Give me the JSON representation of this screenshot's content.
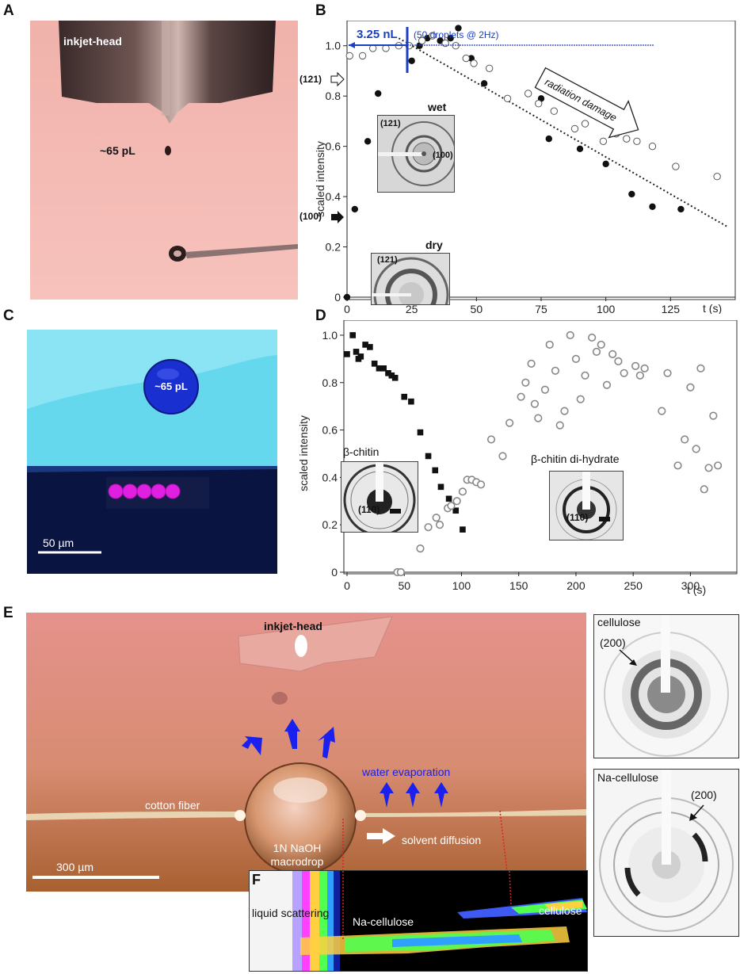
{
  "panels": {
    "a": {
      "letter": "A",
      "inkjet_label": "inkjet-head",
      "drop_label": "~65 pL"
    },
    "b": {
      "letter": "B"
    },
    "c": {
      "letter": "C",
      "drop_label": "~65 pL",
      "scalebar": "50 µm"
    },
    "d": {
      "letter": "D"
    },
    "e": {
      "letter": "E",
      "inkjet_label": "inkjet-head",
      "fiber_label": "cotton fiber",
      "drop_line1": "1N NaOH",
      "drop_line2": "macrodrop",
      "evap_label": "water evaporation",
      "diff_label": "solvent diffusion",
      "scalebar": "300 µm",
      "cellulose_title": "cellulose",
      "cellulose_reflection": "(200)",
      "na_title": "Na-cellulose",
      "na_reflection": "(200)"
    },
    "f": {
      "letter": "F",
      "liquid": "liquid scattering",
      "na": "Na-cellulose",
      "cell": "cellulose"
    }
  },
  "colors": {
    "accent_blue": "#1a3fc0",
    "magenta": "#e020e0",
    "drop_blue": "#1a2fd0",
    "cyan": "#66d8ee",
    "navy": "#0a1440",
    "pink_bg": "#f4b3ae"
  },
  "chart_data": [
    {
      "type": "scatter",
      "panel": "B",
      "ylabel": "scaled intensity",
      "xunit": "t (s)",
      "xlim": [
        0,
        150
      ],
      "ylim": [
        0,
        1.1
      ],
      "xticks": [
        0,
        25,
        50,
        75,
        100,
        125
      ],
      "yticks": [
        0,
        0.2,
        0.4,
        0.6,
        0.8,
        1.0
      ],
      "xtick_labels": [
        "0",
        "25",
        "50",
        "75",
        "100",
        "125"
      ],
      "ytick_labels": [
        "0",
        "0.2",
        "0.4",
        "0.6",
        "0.8",
        "1.0"
      ],
      "volume_label": "3.25 nL",
      "droplet_label": "(50 droplets @ 2Hz)",
      "arrow_label": "radiation damage",
      "label_121": "(121)",
      "label_100": "(100)",
      "inset_wet": {
        "title": "wet",
        "l121": "(121)",
        "l100": "(100)"
      },
      "inset_dry": {
        "title": "dry",
        "l121": "(121)"
      },
      "series": [
        {
          "marker": "filled",
          "x": [
            0,
            3,
            8,
            12,
            25,
            28,
            31,
            36,
            40,
            43,
            48,
            53,
            62,
            75,
            78,
            90,
            100,
            110,
            118,
            129
          ],
          "y": [
            0.0,
            0.35,
            0.62,
            0.81,
            0.94,
            1.0,
            1.03,
            1.02,
            1.03,
            1.07,
            0.95,
            0.85,
            0.79,
            0.79,
            0.63,
            0.59,
            0.53,
            0.41,
            0.36,
            0.35
          ]
        },
        {
          "marker": "open",
          "x": [
            1,
            6,
            10,
            15,
            20,
            24,
            29,
            33,
            38,
            42,
            46,
            49,
            55,
            62,
            70,
            74,
            80,
            88,
            92,
            99,
            104,
            108,
            112,
            118,
            127,
            143
          ],
          "y": [
            0.96,
            0.96,
            0.99,
            0.99,
            1.0,
            1.0,
            1.02,
            1.04,
            1.01,
            1.0,
            0.95,
            0.93,
            0.91,
            0.79,
            0.81,
            0.77,
            0.74,
            0.67,
            0.69,
            0.62,
            0.65,
            0.63,
            0.62,
            0.6,
            0.52,
            0.48
          ]
        }
      ],
      "trend_line": {
        "x": [
          20,
          147
        ],
        "y": [
          1.03,
          0.28
        ]
      }
    },
    {
      "type": "scatter",
      "panel": "D",
      "ylabel": "scaled intensity",
      "xunit": "t (s)",
      "xlim": [
        0,
        335
      ],
      "ylim": [
        0,
        1.05
      ],
      "xticks": [
        0,
        50,
        100,
        150,
        200,
        250,
        300
      ],
      "yticks": [
        0,
        0.2,
        0.4,
        0.6,
        0.8,
        1.0
      ],
      "xtick_labels": [
        "0",
        "50",
        "100",
        "150",
        "200",
        "250",
        "300"
      ],
      "ytick_labels": [
        "0",
        "0.2",
        "0.4",
        "0.6",
        "0.8",
        "1.0"
      ],
      "inset_left": {
        "title": "β-chitin",
        "reflection": "(110)"
      },
      "inset_right": {
        "title": "β-chitin di-hydrate",
        "reflection": "(110)"
      },
      "series": [
        {
          "marker": "filled-square",
          "x": [
            0,
            5,
            8,
            10,
            12,
            16,
            20,
            24,
            28,
            32,
            36,
            39,
            42,
            50,
            56,
            64,
            71,
            77,
            82,
            89,
            95,
            101
          ],
          "y": [
            0.92,
            1.0,
            0.93,
            0.9,
            0.91,
            0.96,
            0.95,
            0.88,
            0.86,
            0.86,
            0.84,
            0.83,
            0.82,
            0.74,
            0.72,
            0.59,
            0.49,
            0.43,
            0.36,
            0.31,
            0.26,
            0.18
          ]
        },
        {
          "marker": "open-circle",
          "x": [
            44,
            47,
            64,
            71,
            78,
            81,
            88,
            91,
            96,
            101,
            105,
            109,
            113,
            117,
            126,
            136,
            142,
            152,
            156,
            161,
            164,
            167,
            173,
            177,
            182,
            186,
            190,
            195,
            200,
            204,
            208,
            214,
            218,
            222,
            227,
            232,
            237,
            242,
            252,
            256,
            260,
            275,
            280,
            289,
            295,
            300,
            305,
            309,
            312,
            316,
            320,
            324
          ],
          "y": [
            0.0,
            0.0,
            0.1,
            0.19,
            0.23,
            0.2,
            0.27,
            0.28,
            0.3,
            0.34,
            0.39,
            0.39,
            0.38,
            0.37,
            0.56,
            0.49,
            0.63,
            0.74,
            0.8,
            0.88,
            0.71,
            0.65,
            0.77,
            0.96,
            0.85,
            0.62,
            0.68,
            1.0,
            0.9,
            0.73,
            0.83,
            0.99,
            0.93,
            0.96,
            0.79,
            0.92,
            0.89,
            0.84,
            0.87,
            0.83,
            0.86,
            0.68,
            0.84,
            0.45,
            0.56,
            0.78,
            0.52,
            0.86,
            0.35,
            0.44,
            0.66,
            0.45
          ]
        }
      ]
    }
  ]
}
